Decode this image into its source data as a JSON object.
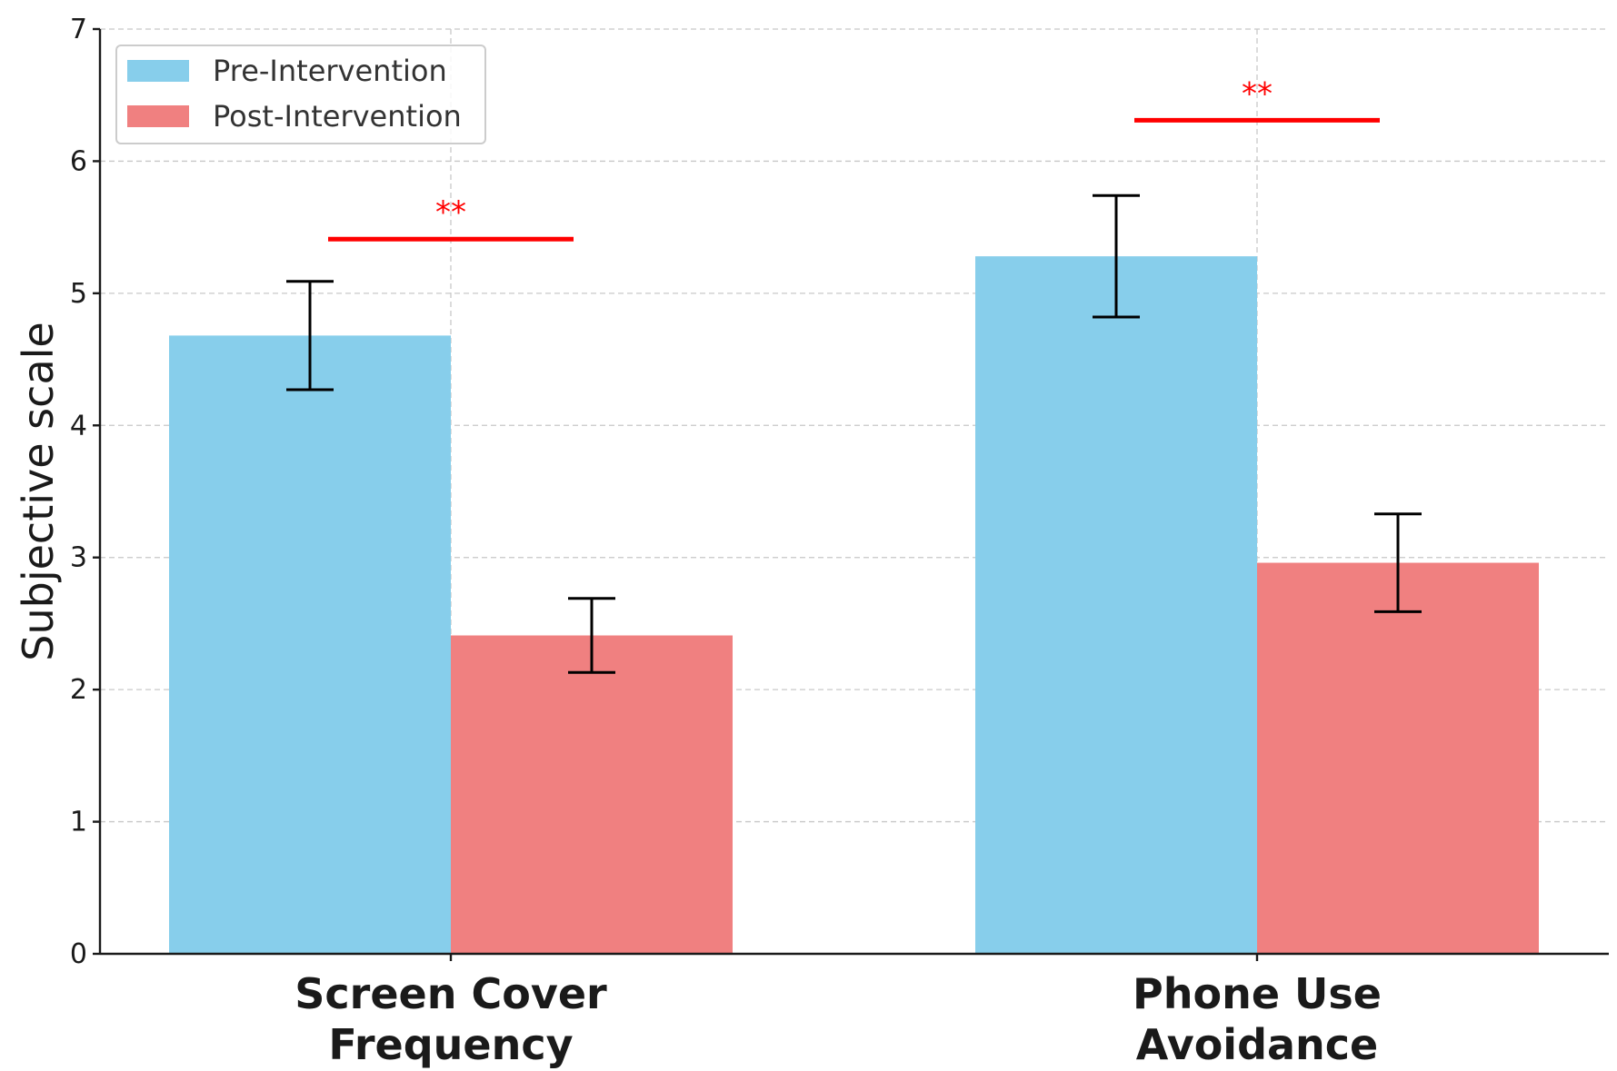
{
  "chart_data": {
    "type": "bar",
    "categories": [
      "Screen Cover\nFrequency",
      "Phone Use\nAvoidance"
    ],
    "series": [
      {
        "name": "Pre-Intervention",
        "color": "#87CEEB",
        "values": [
          4.68,
          5.28
        ],
        "errors": [
          0.41,
          0.46
        ]
      },
      {
        "name": "Post-Intervention",
        "color": "#F08080",
        "values": [
          2.41,
          2.96
        ],
        "errors": [
          0.28,
          0.37
        ]
      }
    ],
    "significance": [
      {
        "label": "**",
        "y": 5.41,
        "color": "#FF0000"
      },
      {
        "label": "**",
        "y": 6.31,
        "color": "#FF0000"
      }
    ],
    "ylabel": "Subjective scale",
    "xlabel": "",
    "ylim": [
      0,
      7
    ],
    "yticks": [
      "0",
      "1",
      "2",
      "3",
      "4",
      "5",
      "6",
      "7"
    ],
    "grid": true,
    "legend_position": "top-left"
  }
}
